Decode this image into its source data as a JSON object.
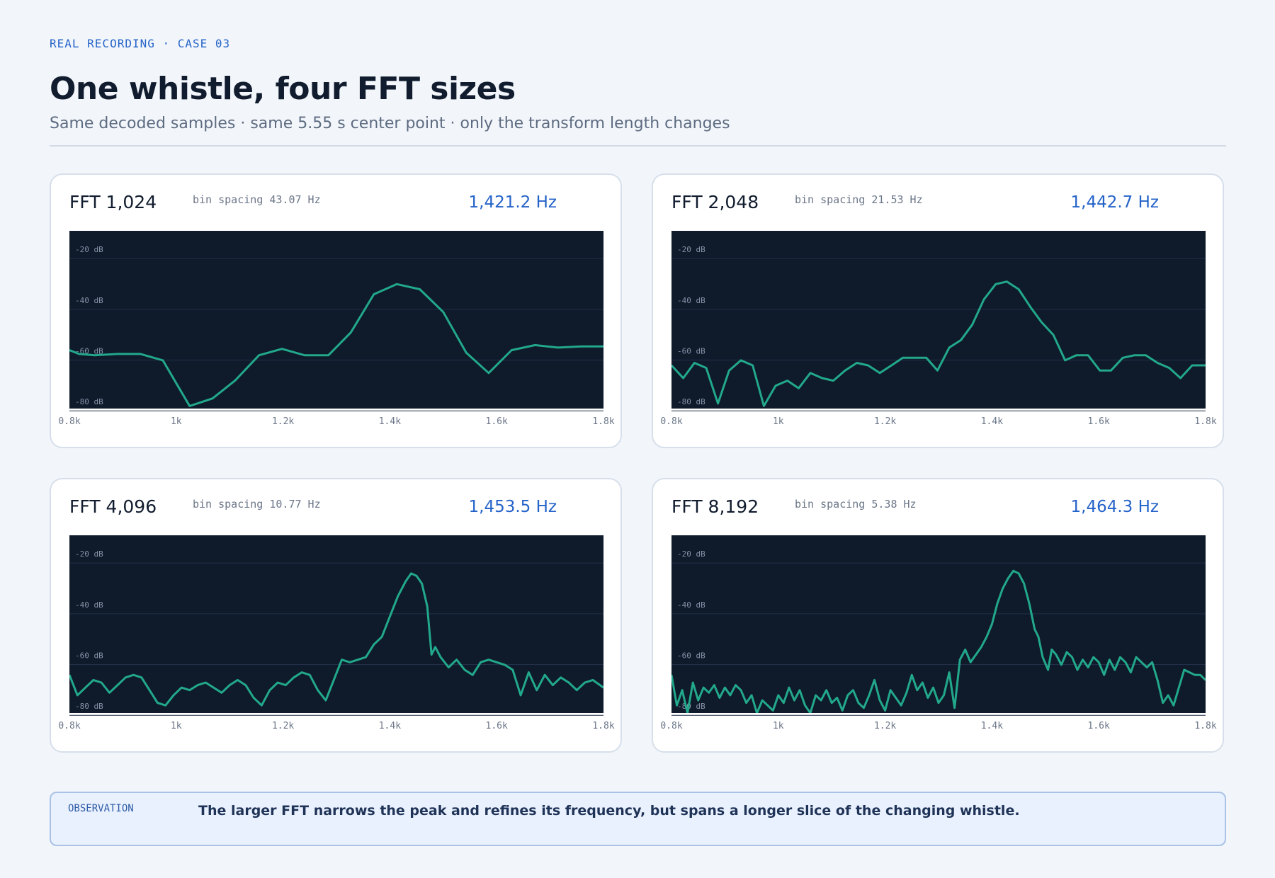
{
  "header": {
    "eyebrow": "REAL RECORDING · CASE 03",
    "title": "One whistle, four FFT sizes",
    "subtitle": "Same decoded samples · same 5.55 s center point · only the transform length changes"
  },
  "panels": [
    {
      "fft_label": "FFT 1,024",
      "bin_spacing": "bin spacing 43.07 Hz",
      "peak": "1,421.2 Hz"
    },
    {
      "fft_label": "FFT 2,048",
      "bin_spacing": "bin spacing 21.53 Hz",
      "peak": "1,442.7 Hz"
    },
    {
      "fft_label": "FFT 4,096",
      "bin_spacing": "bin spacing 10.77 Hz",
      "peak": "1,453.5 Hz"
    },
    {
      "fft_label": "FFT 8,192",
      "bin_spacing": "bin spacing 5.38 Hz",
      "peak": "1,464.3 Hz"
    }
  ],
  "observation": {
    "label": "OBSERVATION",
    "text": "The larger FFT narrows the peak and refines its frequency, but spans a longer slice of the changing whistle."
  },
  "colors": {
    "plot_background": "#0f1a2b",
    "line": "#22a88a",
    "accent": "#2563c9"
  },
  "chart_data": [
    {
      "type": "line",
      "xlim": [
        800,
        1800
      ],
      "ylim": [
        -83,
        -13
      ],
      "x_ticks": [
        800,
        1000,
        1200,
        1400,
        1600,
        1800
      ],
      "x_tick_labels": [
        "0.8k",
        "1k",
        "1.2k",
        "1.4k",
        "1.6k",
        "1.8k"
      ],
      "y_ticks": [
        -20,
        -40,
        -60,
        -80
      ],
      "y_tick_labels": [
        "-20 dB",
        "-40 dB",
        "-60 dB",
        "-80 dB"
      ],
      "grid": true,
      "points": [
        [
          800,
          -60
        ],
        [
          818,
          -61.5
        ],
        [
          847,
          -62
        ],
        [
          890,
          -61.5
        ],
        [
          933,
          -61.5
        ],
        [
          975,
          -64
        ],
        [
          1025,
          -82
        ],
        [
          1068,
          -79
        ],
        [
          1110,
          -72
        ],
        [
          1155,
          -62
        ],
        [
          1198,
          -59.5
        ],
        [
          1240,
          -62
        ],
        [
          1285,
          -62
        ],
        [
          1327,
          -53
        ],
        [
          1370,
          -38
        ],
        [
          1413,
          -34
        ],
        [
          1456,
          -36
        ],
        [
          1500,
          -45
        ],
        [
          1543,
          -61
        ],
        [
          1585,
          -69
        ],
        [
          1628,
          -60
        ],
        [
          1672,
          -58
        ],
        [
          1715,
          -59
        ],
        [
          1758,
          -58.5
        ],
        [
          1800,
          -58.5
        ]
      ]
    },
    {
      "type": "line",
      "xlim": [
        800,
        1800
      ],
      "ylim": [
        -83,
        -13
      ],
      "x_ticks": [
        800,
        1000,
        1200,
        1400,
        1600,
        1800
      ],
      "x_tick_labels": [
        "0.8k",
        "1k",
        "1.2k",
        "1.4k",
        "1.6k",
        "1.8k"
      ],
      "y_ticks": [
        -20,
        -40,
        -60,
        -80
      ],
      "y_tick_labels": [
        "-20 dB",
        "-40 dB",
        "-60 dB",
        "-80 dB"
      ],
      "grid": true,
      "points": [
        [
          800,
          -66
        ],
        [
          822,
          -71
        ],
        [
          843,
          -65
        ],
        [
          865,
          -67
        ],
        [
          887,
          -81
        ],
        [
          908,
          -68
        ],
        [
          930,
          -64
        ],
        [
          952,
          -66
        ],
        [
          973,
          -82
        ],
        [
          995,
          -74
        ],
        [
          1017,
          -72
        ],
        [
          1038,
          -75
        ],
        [
          1060,
          -69
        ],
        [
          1082,
          -71
        ],
        [
          1103,
          -72
        ],
        [
          1125,
          -68
        ],
        [
          1147,
          -65
        ],
        [
          1168,
          -66
        ],
        [
          1190,
          -69
        ],
        [
          1212,
          -66
        ],
        [
          1233,
          -63
        ],
        [
          1255,
          -63
        ],
        [
          1277,
          -63
        ],
        [
          1298,
          -68
        ],
        [
          1320,
          -59
        ],
        [
          1342,
          -56
        ],
        [
          1363,
          -50
        ],
        [
          1385,
          -40
        ],
        [
          1407,
          -34
        ],
        [
          1428,
          -33
        ],
        [
          1450,
          -36
        ],
        [
          1472,
          -43
        ],
        [
          1493,
          -49
        ],
        [
          1515,
          -54
        ],
        [
          1537,
          -64
        ],
        [
          1558,
          -62
        ],
        [
          1580,
          -62
        ],
        [
          1602,
          -68
        ],
        [
          1623,
          -68
        ],
        [
          1645,
          -63
        ],
        [
          1667,
          -62
        ],
        [
          1688,
          -62
        ],
        [
          1710,
          -65
        ],
        [
          1732,
          -67
        ],
        [
          1753,
          -71
        ],
        [
          1775,
          -66
        ],
        [
          1800,
          -66
        ]
      ]
    },
    {
      "type": "line",
      "xlim": [
        800,
        1800
      ],
      "ylim": [
        -83,
        -13
      ],
      "x_ticks": [
        800,
        1000,
        1200,
        1400,
        1600,
        1800
      ],
      "x_tick_labels": [
        "0.8k",
        "1k",
        "1.2k",
        "1.4k",
        "1.6k",
        "1.8k"
      ],
      "y_ticks": [
        -20,
        -40,
        -60,
        -80
      ],
      "y_tick_labels": [
        "-20 dB",
        "-40 dB",
        "-60 dB",
        "-80 dB"
      ],
      "grid": true,
      "points": [
        [
          800,
          -68
        ],
        [
          815,
          -76
        ],
        [
          830,
          -73
        ],
        [
          845,
          -70
        ],
        [
          860,
          -71
        ],
        [
          875,
          -75
        ],
        [
          890,
          -72
        ],
        [
          905,
          -69
        ],
        [
          920,
          -68
        ],
        [
          935,
          -69
        ],
        [
          950,
          -74
        ],
        [
          965,
          -79
        ],
        [
          980,
          -80
        ],
        [
          995,
          -76
        ],
        [
          1010,
          -73
        ],
        [
          1025,
          -74
        ],
        [
          1040,
          -72
        ],
        [
          1055,
          -71
        ],
        [
          1070,
          -73
        ],
        [
          1085,
          -75
        ],
        [
          1100,
          -72
        ],
        [
          1115,
          -70
        ],
        [
          1130,
          -72
        ],
        [
          1145,
          -77
        ],
        [
          1160,
          -80
        ],
        [
          1175,
          -74
        ],
        [
          1190,
          -71
        ],
        [
          1205,
          -72
        ],
        [
          1220,
          -69
        ],
        [
          1235,
          -67
        ],
        [
          1250,
          -68
        ],
        [
          1265,
          -74
        ],
        [
          1280,
          -78
        ],
        [
          1295,
          -70
        ],
        [
          1310,
          -62
        ],
        [
          1325,
          -63
        ],
        [
          1340,
          -62
        ],
        [
          1355,
          -61
        ],
        [
          1370,
          -56
        ],
        [
          1385,
          -53
        ],
        [
          1400,
          -45
        ],
        [
          1415,
          -37
        ],
        [
          1430,
          -31
        ],
        [
          1440,
          -28
        ],
        [
          1450,
          -29
        ],
        [
          1460,
          -32
        ],
        [
          1470,
          -41
        ],
        [
          1478,
          -60
        ],
        [
          1485,
          -57
        ],
        [
          1495,
          -61
        ],
        [
          1510,
          -65
        ],
        [
          1525,
          -62
        ],
        [
          1540,
          -66
        ],
        [
          1555,
          -68
        ],
        [
          1570,
          -63
        ],
        [
          1585,
          -62
        ],
        [
          1600,
          -63
        ],
        [
          1615,
          -64
        ],
        [
          1630,
          -66
        ],
        [
          1645,
          -76
        ],
        [
          1660,
          -67
        ],
        [
          1675,
          -74
        ],
        [
          1690,
          -68
        ],
        [
          1705,
          -72
        ],
        [
          1720,
          -69
        ],
        [
          1735,
          -71
        ],
        [
          1750,
          -74
        ],
        [
          1765,
          -71
        ],
        [
          1780,
          -70
        ],
        [
          1800,
          -73
        ]
      ]
    },
    {
      "type": "line",
      "xlim": [
        800,
        1800
      ],
      "ylim": [
        -83,
        -13
      ],
      "x_ticks": [
        800,
        1000,
        1200,
        1400,
        1600,
        1800
      ],
      "x_tick_labels": [
        "0.8k",
        "1k",
        "1.2k",
        "1.4k",
        "1.6k",
        "1.8k"
      ],
      "y_ticks": [
        -20,
        -40,
        -60,
        -80
      ],
      "y_tick_labels": [
        "-20 dB",
        "-40 dB",
        "-60 dB",
        "-80 dB"
      ],
      "grid": true,
      "points": [
        [
          800,
          -68
        ],
        [
          810,
          -80
        ],
        [
          820,
          -74
        ],
        [
          830,
          -83
        ],
        [
          840,
          -71
        ],
        [
          850,
          -78
        ],
        [
          860,
          -73
        ],
        [
          870,
          -75
        ],
        [
          880,
          -72
        ],
        [
          890,
          -77
        ],
        [
          900,
          -73
        ],
        [
          910,
          -76
        ],
        [
          920,
          -72
        ],
        [
          930,
          -74
        ],
        [
          940,
          -79
        ],
        [
          950,
          -76
        ],
        [
          960,
          -83
        ],
        [
          970,
          -78
        ],
        [
          980,
          -80
        ],
        [
          990,
          -82
        ],
        [
          1000,
          -76
        ],
        [
          1010,
          -79
        ],
        [
          1020,
          -73
        ],
        [
          1030,
          -78
        ],
        [
          1040,
          -74
        ],
        [
          1050,
          -80
        ],
        [
          1060,
          -83
        ],
        [
          1070,
          -76
        ],
        [
          1080,
          -78
        ],
        [
          1090,
          -74
        ],
        [
          1100,
          -79
        ],
        [
          1110,
          -77
        ],
        [
          1120,
          -82
        ],
        [
          1130,
          -76
        ],
        [
          1140,
          -74
        ],
        [
          1150,
          -79
        ],
        [
          1160,
          -81
        ],
        [
          1170,
          -76
        ],
        [
          1180,
          -70
        ],
        [
          1190,
          -78
        ],
        [
          1200,
          -82
        ],
        [
          1210,
          -74
        ],
        [
          1220,
          -77
        ],
        [
          1230,
          -80
        ],
        [
          1240,
          -75
        ],
        [
          1250,
          -68
        ],
        [
          1260,
          -74
        ],
        [
          1270,
          -71
        ],
        [
          1280,
          -77
        ],
        [
          1290,
          -73
        ],
        [
          1300,
          -79
        ],
        [
          1310,
          -76
        ],
        [
          1320,
          -67
        ],
        [
          1330,
          -81
        ],
        [
          1340,
          -62
        ],
        [
          1350,
          -58
        ],
        [
          1360,
          -63
        ],
        [
          1370,
          -60
        ],
        [
          1380,
          -57
        ],
        [
          1390,
          -53
        ],
        [
          1400,
          -48
        ],
        [
          1410,
          -40
        ],
        [
          1420,
          -34
        ],
        [
          1430,
          -30
        ],
        [
          1440,
          -27
        ],
        [
          1450,
          -28
        ],
        [
          1460,
          -32
        ],
        [
          1470,
          -40
        ],
        [
          1480,
          -50
        ],
        [
          1487,
          -53
        ],
        [
          1495,
          -61
        ],
        [
          1505,
          -66
        ],
        [
          1512,
          -58
        ],
        [
          1520,
          -60
        ],
        [
          1530,
          -64
        ],
        [
          1540,
          -59
        ],
        [
          1550,
          -61
        ],
        [
          1560,
          -66
        ],
        [
          1570,
          -62
        ],
        [
          1580,
          -65
        ],
        [
          1590,
          -61
        ],
        [
          1600,
          -63
        ],
        [
          1610,
          -68
        ],
        [
          1620,
          -62
        ],
        [
          1630,
          -66
        ],
        [
          1640,
          -61
        ],
        [
          1650,
          -63
        ],
        [
          1660,
          -67
        ],
        [
          1670,
          -61
        ],
        [
          1680,
          -63
        ],
        [
          1690,
          -65
        ],
        [
          1700,
          -63
        ],
        [
          1710,
          -70
        ],
        [
          1720,
          -79
        ],
        [
          1730,
          -76
        ],
        [
          1740,
          -80
        ],
        [
          1750,
          -73
        ],
        [
          1760,
          -66
        ],
        [
          1770,
          -67
        ],
        [
          1780,
          -68
        ],
        [
          1790,
          -68
        ],
        [
          1800,
          -70
        ]
      ]
    }
  ]
}
